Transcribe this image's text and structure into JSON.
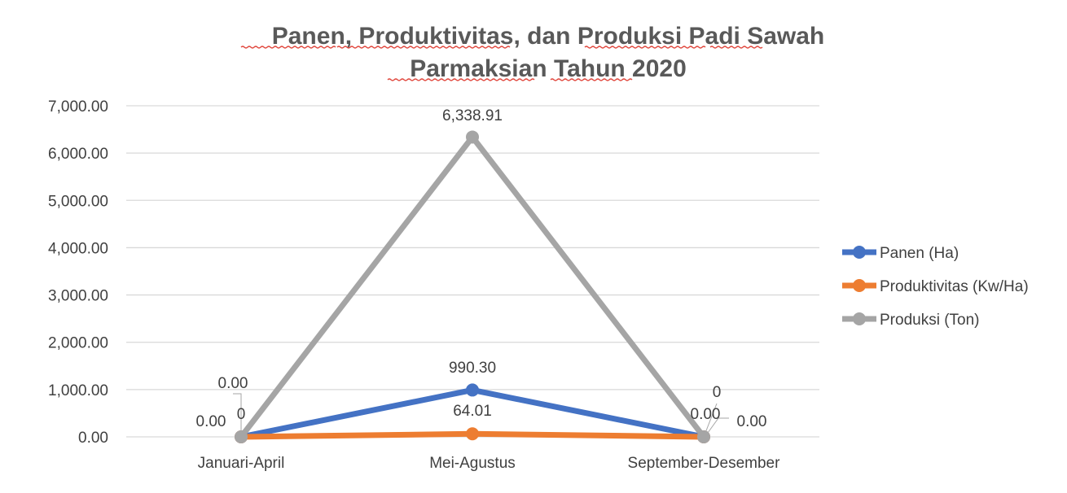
{
  "chart_data": {
    "type": "line",
    "title": "Panen, Produktivitas, dan Produksi Padi Sawah Parmaksian Tahun 2020",
    "title_lines": [
      "Panen, Produktivitas, dan Produksi Padi Sawah",
      "Parmaksian Tahun 2020"
    ],
    "categories": [
      "Januari-April",
      "Mei-Agustus",
      "September-Desember"
    ],
    "ylim": [
      0,
      7000
    ],
    "yticks": [
      "0.00",
      "1,000.00",
      "2,000.00",
      "3,000.00",
      "4,000.00",
      "5,000.00",
      "6,000.00",
      "7,000.00"
    ],
    "grid": true,
    "legend_position": "right",
    "series": [
      {
        "name": "Panen (Ha)",
        "color": "#4472c4",
        "values": [
          0,
          990.3,
          0
        ],
        "labels": [
          "0.00",
          "990.30",
          "0.00"
        ]
      },
      {
        "name": "Produktivitas (Kw/Ha)",
        "color": "#ed7d31",
        "values": [
          0,
          64.01,
          0
        ],
        "labels": [
          "0",
          "64.01",
          "0"
        ]
      },
      {
        "name": "Produksi (Ton)",
        "color": "#a5a5a5",
        "values": [
          0,
          6338.91,
          0
        ],
        "labels": [
          "0.00",
          "6,338.91",
          "0.00"
        ]
      }
    ]
  }
}
